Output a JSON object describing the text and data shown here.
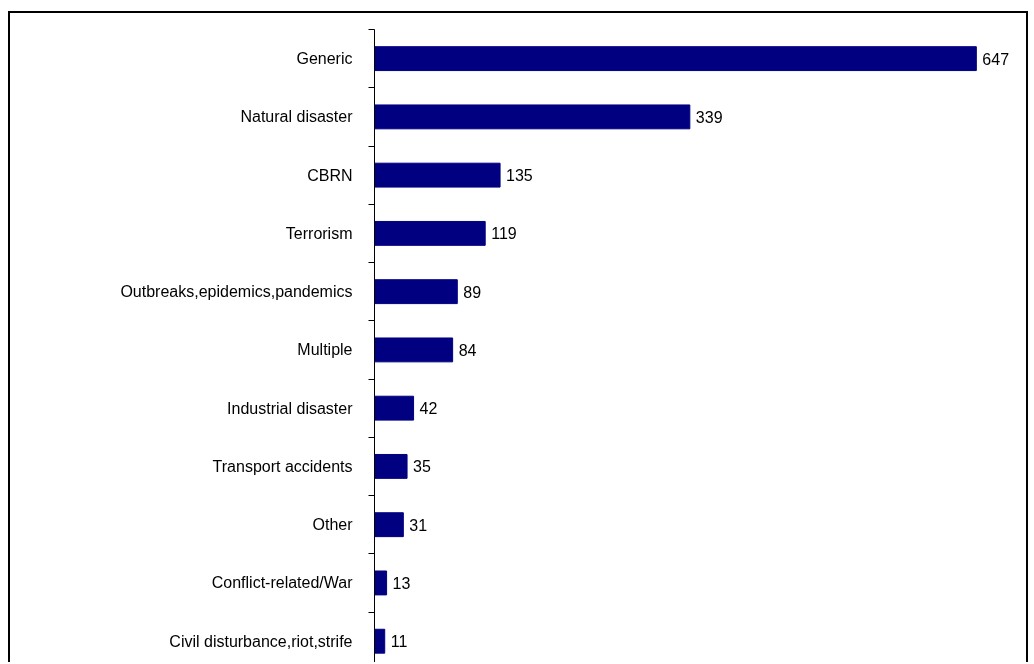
{
  "chart_data": {
    "type": "bar",
    "orientation": "horizontal",
    "categories": [
      "Generic",
      "Natural disaster",
      "CBRN",
      "Terrorism",
      "Outbreaks,epidemics,pandemics",
      "Multiple",
      "Industrial disaster",
      "Transport accidents",
      "Other",
      "Conflict-related/War",
      "Civil disturbance,riot,strife"
    ],
    "values": [
      647,
      339,
      135,
      119,
      89,
      84,
      42,
      35,
      31,
      13,
      11
    ],
    "color": "#000080",
    "data_labels": true
  }
}
